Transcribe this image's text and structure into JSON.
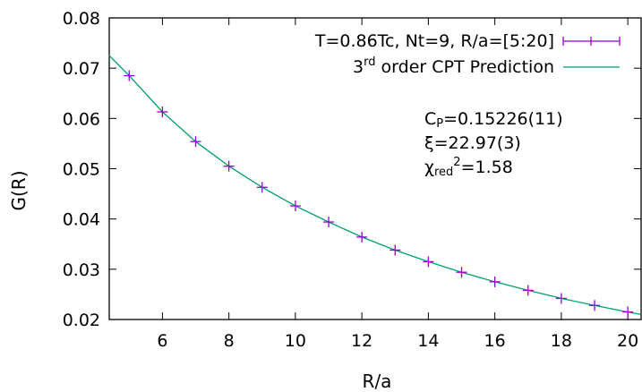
{
  "chart_data": {
    "type": "line",
    "xlabel": "R/a",
    "ylabel": "G(R)",
    "xlim": [
      4.4,
      20.4
    ],
    "ylim": [
      0.02,
      0.08
    ],
    "xticks": [
      6,
      8,
      10,
      12,
      14,
      16,
      18,
      20
    ],
    "yticks": [
      0.02,
      0.03,
      0.04,
      0.05,
      0.06,
      0.07,
      0.08
    ],
    "xtick_labels": [
      "6",
      "8",
      "10",
      "12",
      "14",
      "16",
      "18",
      "20"
    ],
    "ytick_labels": [
      "0.02",
      "0.03",
      "0.04",
      "0.05",
      "0.06",
      "0.07",
      "0.08"
    ],
    "grid": false,
    "legend_position": "top-right",
    "series": [
      {
        "name": "T=0.86Tc, Nt=9, R/a=[5:20]",
        "kind": "errorbars",
        "color": "#9400d3",
        "x": [
          5,
          6,
          7,
          8,
          9,
          10,
          11,
          12,
          13,
          14,
          15,
          16,
          17,
          18,
          19,
          20
        ],
        "y": [
          0.0685,
          0.0613,
          0.0554,
          0.0505,
          0.0463,
          0.0426,
          0.0394,
          0.0364,
          0.0338,
          0.0315,
          0.0294,
          0.0275,
          0.0258,
          0.0242,
          0.0228,
          0.0215
        ]
      },
      {
        "name_main": "3",
        "name_sup": "rd",
        "name_rest": " order CPT Prediction",
        "kind": "line",
        "color": "#009e73",
        "x": [
          4.4,
          5,
          6,
          7,
          8,
          9,
          10,
          11,
          12,
          13,
          14,
          15,
          16,
          17,
          18,
          19,
          20,
          20.4
        ],
        "y": [
          0.0725,
          0.0685,
          0.0613,
          0.0554,
          0.0505,
          0.0463,
          0.0426,
          0.0394,
          0.0364,
          0.0338,
          0.0315,
          0.0294,
          0.0275,
          0.0258,
          0.0242,
          0.0228,
          0.0215,
          0.021
        ]
      }
    ],
    "annotations": {
      "cp_main": "C",
      "cp_sub": "P",
      "cp_rest": "=0.15226(11)",
      "xi": "ξ=22.97(3)",
      "chi_main": "χ",
      "chi_sub": "red",
      "chi_sup": "2",
      "chi_rest": "=1.58"
    }
  }
}
